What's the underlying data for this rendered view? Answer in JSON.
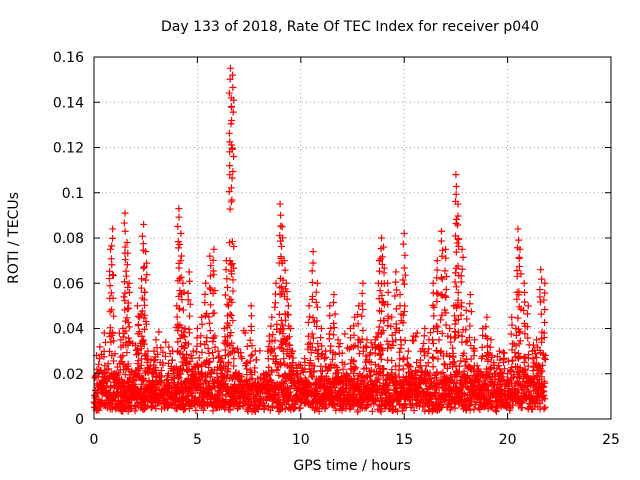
{
  "chart_data": {
    "type": "scatter",
    "title": "Day 133 of 2018, Rate Of TEC Index for receiver p040",
    "xlabel": "GPS time / hours",
    "ylabel": "ROTI / TECUs",
    "xlim": [
      0,
      25
    ],
    "ylim": [
      0,
      0.16
    ],
    "xticks": [
      0,
      5,
      10,
      15,
      20,
      25
    ],
    "yticks": [
      0,
      0.02,
      0.04,
      0.06,
      0.08,
      0.1,
      0.12,
      0.14,
      0.16
    ],
    "xtick_labels": [
      "0",
      "5",
      "10",
      "15",
      "20",
      "25"
    ],
    "ytick_labels": [
      "0",
      "0.02",
      "0.04",
      "0.06",
      "0.08",
      "0.1",
      "0.12",
      "0.14",
      "0.16"
    ],
    "grid": true,
    "marker": "+",
    "series_color": "#ff0000",
    "series": [
      {
        "x": [
          0.1,
          0.3,
          0.4,
          0.5,
          0.6,
          0.7,
          0.8,
          0.9,
          1.0,
          1.1,
          1.2,
          1.3,
          1.4,
          1.5,
          1.6,
          1.7,
          1.8,
          1.9,
          2.0,
          2.1,
          2.2,
          2.3,
          2.4,
          2.5,
          2.6,
          2.7,
          2.8,
          2.9,
          3.0,
          3.2,
          3.4,
          3.6,
          3.8,
          4.0,
          4.1,
          4.2,
          4.3,
          4.4,
          4.5,
          4.6,
          4.7,
          4.8,
          4.9,
          5.0,
          5.2,
          5.4,
          5.6,
          5.8,
          6.0,
          6.1,
          6.2,
          6.3,
          6.4,
          6.5,
          6.6,
          6.7,
          6.8,
          7.0,
          7.2,
          7.4,
          7.6,
          7.8,
          8.0,
          8.2,
          8.4,
          8.6,
          8.8,
          9.0,
          9.1,
          9.2,
          9.3,
          9.4,
          9.5,
          9.6,
          9.8,
          10.0,
          10.2,
          10.4,
          10.6,
          10.8,
          11.0,
          11.2,
          11.4,
          11.6,
          11.8,
          12.0,
          12.2,
          12.4,
          12.6,
          12.8,
          13.0,
          13.2,
          13.4,
          13.6,
          13.8,
          13.9,
          14.0,
          14.2,
          14.4,
          14.6,
          14.8,
          15.0,
          15.2,
          15.4,
          15.6,
          15.8,
          16.0,
          16.2,
          16.4,
          16.6,
          16.8,
          17.0,
          17.2,
          17.4,
          17.5,
          17.6,
          17.8,
          18.0,
          18.2,
          18.4,
          18.6,
          18.8,
          19.0,
          19.2,
          19.4,
          19.6,
          19.8,
          20.0,
          20.2,
          20.4,
          20.5,
          20.6,
          20.8,
          21.0,
          21.2,
          21.4,
          21.6,
          21.8
        ],
        "y": [
          0.01,
          0.015,
          0.02,
          0.038,
          0.012,
          0.01,
          0.075,
          0.084,
          0.02,
          0.012,
          0.015,
          0.035,
          0.04,
          0.091,
          0.078,
          0.06,
          0.015,
          0.012,
          0.02,
          0.05,
          0.045,
          0.062,
          0.086,
          0.074,
          0.03,
          0.015,
          0.02,
          0.03,
          0.035,
          0.025,
          0.015,
          0.02,
          0.03,
          0.05,
          0.093,
          0.082,
          0.06,
          0.04,
          0.025,
          0.065,
          0.028,
          0.03,
          0.02,
          0.04,
          0.045,
          0.06,
          0.072,
          0.075,
          0.03,
          0.025,
          0.02,
          0.04,
          0.07,
          0.05,
          0.155,
          0.152,
          0.03,
          0.02,
          0.015,
          0.025,
          0.05,
          0.03,
          0.015,
          0.02,
          0.03,
          0.045,
          0.06,
          0.095,
          0.085,
          0.07,
          0.06,
          0.05,
          0.04,
          0.03,
          0.02,
          0.015,
          0.025,
          0.05,
          0.074,
          0.06,
          0.04,
          0.03,
          0.05,
          0.055,
          0.035,
          0.025,
          0.02,
          0.04,
          0.045,
          0.05,
          0.06,
          0.035,
          0.025,
          0.035,
          0.07,
          0.08,
          0.076,
          0.06,
          0.045,
          0.065,
          0.055,
          0.082,
          0.03,
          0.02,
          0.025,
          0.03,
          0.04,
          0.035,
          0.06,
          0.07,
          0.083,
          0.075,
          0.04,
          0.05,
          0.108,
          0.095,
          0.075,
          0.048,
          0.055,
          0.035,
          0.02,
          0.04,
          0.045,
          0.035,
          0.02,
          0.03,
          0.025,
          0.02,
          0.045,
          0.04,
          0.084,
          0.075,
          0.06,
          0.05,
          0.03,
          0.035,
          0.066,
          0.06
        ]
      }
    ],
    "noise_band": {
      "x_range": [
        0,
        21.8
      ],
      "y_floor": 0.005,
      "y_typical": [
        0.005,
        0.02
      ]
    }
  }
}
